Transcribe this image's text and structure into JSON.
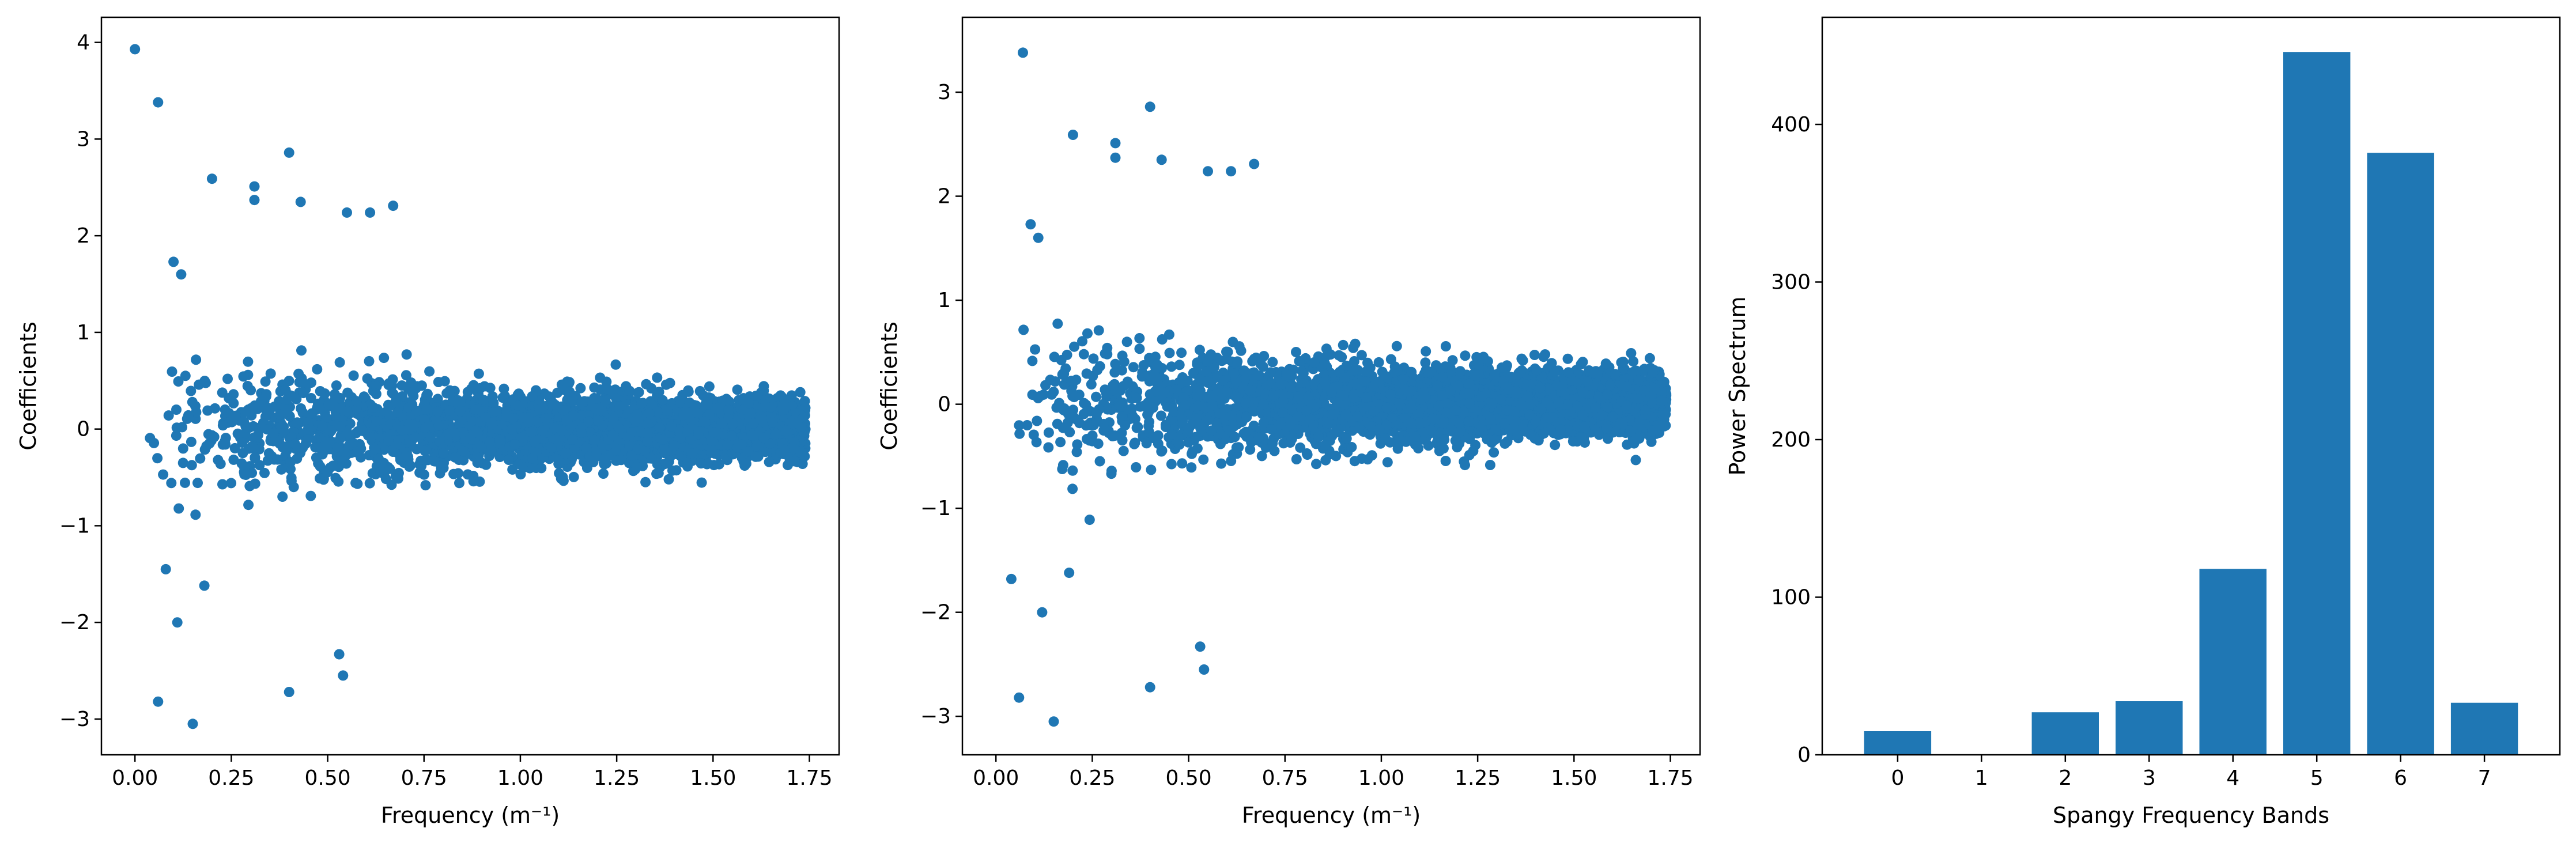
{
  "style": {
    "mark_color": "#1f77b4",
    "axis_color": "#000000",
    "background": "#ffffff"
  },
  "chart_data": [
    {
      "type": "scatter",
      "xlabel": "Frequency (m⁻¹)",
      "ylabel": "Coefficients",
      "xlim": [
        -0.087,
        1.827
      ],
      "ylim": [
        -3.37,
        4.26
      ],
      "xticks": [
        0.0,
        0.25,
        0.5,
        0.75,
        1.0,
        1.25,
        1.5,
        1.75
      ],
      "xtick_labels": [
        "0.00",
        "0.25",
        "0.50",
        "0.75",
        "1.00",
        "1.25",
        "1.50",
        "1.75"
      ],
      "yticks": [
        -3,
        -2,
        -1,
        0,
        1,
        2,
        3,
        4
      ],
      "ytick_labels": [
        "−3",
        "−2",
        "−1",
        "0",
        "1",
        "2",
        "3",
        "4"
      ],
      "x_range": [
        0.0,
        1.74
      ],
      "outliers": [
        [
          0.0,
          3.93
        ],
        [
          0.06,
          3.38
        ],
        [
          0.2,
          2.59
        ],
        [
          0.31,
          2.51
        ],
        [
          0.31,
          2.37
        ],
        [
          0.4,
          2.86
        ],
        [
          0.43,
          2.35
        ],
        [
          0.55,
          2.24
        ],
        [
          0.61,
          2.24
        ],
        [
          0.67,
          2.31
        ],
        [
          0.06,
          -2.82
        ],
        [
          0.15,
          -3.05
        ],
        [
          0.4,
          -2.72
        ],
        [
          0.54,
          -2.55
        ],
        [
          0.53,
          -2.33
        ],
        [
          0.1,
          1.73
        ],
        [
          0.12,
          1.6
        ],
        [
          0.08,
          -1.45
        ],
        [
          0.11,
          -2.0
        ],
        [
          0.18,
          -1.62
        ]
      ],
      "n_points": 3300,
      "seed": 17
    },
    {
      "type": "scatter",
      "xlabel": "Frequency (m⁻¹)",
      "ylabel": "Coefficients",
      "xlim": [
        -0.087,
        1.827
      ],
      "ylim": [
        -3.37,
        3.72
      ],
      "xticks": [
        0.0,
        0.25,
        0.5,
        0.75,
        1.0,
        1.25,
        1.5,
        1.75
      ],
      "xtick_labels": [
        "0.00",
        "0.25",
        "0.50",
        "0.75",
        "1.00",
        "1.25",
        "1.50",
        "1.75"
      ],
      "yticks": [
        -3,
        -2,
        -1,
        0,
        1,
        2,
        3
      ],
      "ytick_labels": [
        "−3",
        "−2",
        "−1",
        "0",
        "1",
        "2",
        "3"
      ],
      "x_range": [
        0.0,
        1.74
      ],
      "outliers": [
        [
          0.07,
          3.38
        ],
        [
          0.2,
          2.59
        ],
        [
          0.31,
          2.51
        ],
        [
          0.31,
          2.37
        ],
        [
          0.4,
          2.86
        ],
        [
          0.43,
          2.35
        ],
        [
          0.55,
          2.24
        ],
        [
          0.61,
          2.24
        ],
        [
          0.67,
          2.31
        ],
        [
          0.06,
          -2.82
        ],
        [
          0.15,
          -3.05
        ],
        [
          0.4,
          -2.72
        ],
        [
          0.54,
          -2.55
        ],
        [
          0.53,
          -2.33
        ],
        [
          0.09,
          1.73
        ],
        [
          0.11,
          1.6
        ],
        [
          0.04,
          -1.68
        ],
        [
          0.12,
          -2.0
        ],
        [
          0.19,
          -1.62
        ]
      ],
      "n_points": 3300,
      "seed": 29
    },
    {
      "type": "bar",
      "xlabel": "Spangy Frequency Bands",
      "ylabel": "Power Spectrum",
      "categories": [
        "0",
        "1",
        "2",
        "3",
        "4",
        "5",
        "6",
        "7"
      ],
      "values": [
        15,
        0,
        27,
        34,
        118,
        446,
        382,
        33
      ],
      "ylim": [
        0,
        468
      ],
      "yticks": [
        0,
        100,
        200,
        300,
        400
      ],
      "ytick_labels": [
        "0",
        "100",
        "200",
        "300",
        "400"
      ]
    }
  ]
}
